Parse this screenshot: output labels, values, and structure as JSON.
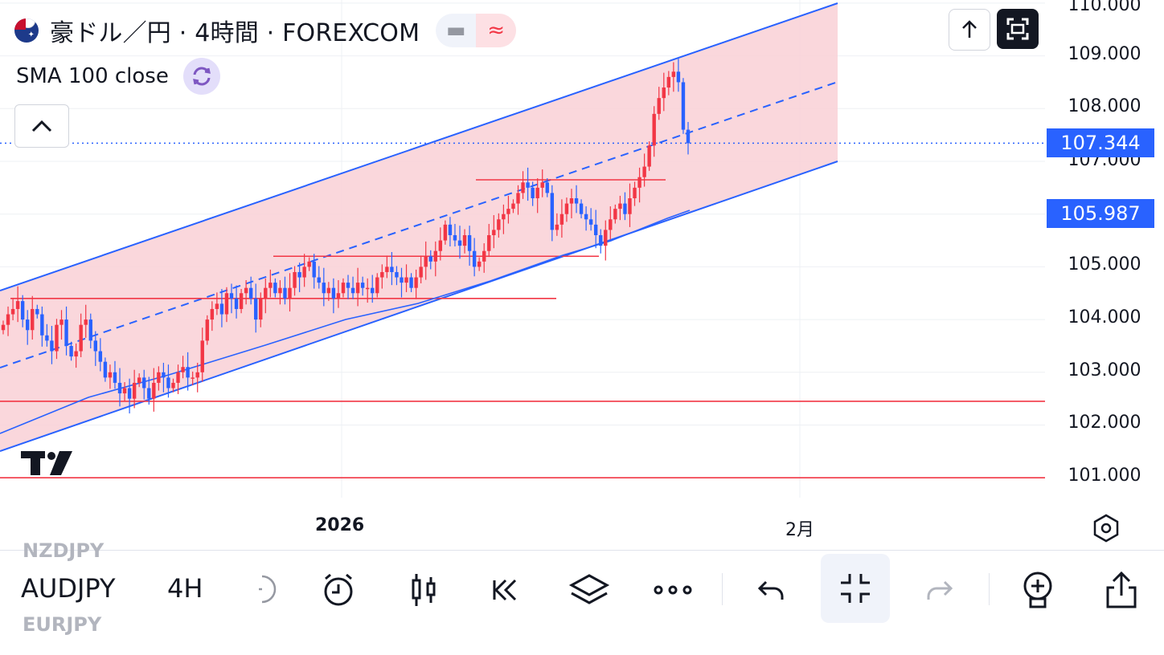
{
  "header": {
    "title": "豪ドル／円 · 4時間 · FOREXCOM",
    "pill_left_icon": "minus-icon",
    "pill_right_icon": "approx-icon",
    "scroll_up_icon": "arrow-up-icon",
    "fullscreen_icon": "fullscreen-icon"
  },
  "indicator": {
    "label": "SMA 100 close",
    "icon": "refresh-icon"
  },
  "price_axis": {
    "ticks": [
      "110.000",
      "109.000",
      "108.000",
      "107.000",
      "105.000",
      "104.000",
      "103.000",
      "102.000",
      "101.000"
    ],
    "current_price": "107.344",
    "second_label": "105.987"
  },
  "time_axis": {
    "labels": [
      "2026",
      "2月"
    ]
  },
  "colors": {
    "up": "#f23645",
    "down": "#2962ff",
    "channel_fill": "#f9d0d6",
    "channel_line": "#2962ff",
    "hline": "#f23645",
    "price_label_bg": "#2962ff"
  },
  "toolbar": {
    "ghost_prev": "NZDJPY",
    "ghost_next": "EURJPY",
    "symbol": "AUDJPY",
    "interval": "4H",
    "icons": [
      "clock-alert-icon",
      "candles-icon",
      "replay-icon",
      "layers-icon",
      "more-icon",
      "undo-icon",
      "collapse-icon",
      "redo-icon",
      "add-indicator-icon",
      "share-icon"
    ]
  },
  "chart_data": {
    "type": "candlestick",
    "symbol": "AUDJPY",
    "title": "豪ドル／円 · 4時間 · FOREXCOM",
    "ylim": [
      100.5,
      110.1
    ],
    "current_price": 107.344,
    "horizontal_levels": [
      104.4,
      105.2,
      106.65,
      102.45,
      101.0
    ],
    "indicator": "SMA 100 close",
    "x_labels": [
      "2026",
      "2月"
    ],
    "closes": [
      103.9,
      104.1,
      104.2,
      104.35,
      104.0,
      103.8,
      104.2,
      104.1,
      103.7,
      103.6,
      103.4,
      103.9,
      104.0,
      103.5,
      103.3,
      103.4,
      103.9,
      104.0,
      103.6,
      103.4,
      103.2,
      102.9,
      103.0,
      102.8,
      102.6,
      102.7,
      102.5,
      102.8,
      102.9,
      102.7,
      102.5,
      102.8,
      103.0,
      102.9,
      102.7,
      102.8,
      103.0,
      103.1,
      102.9,
      102.9,
      103.0,
      103.6,
      104.0,
      104.2,
      104.3,
      104.1,
      104.5,
      104.4,
      104.2,
      104.5,
      104.6,
      104.4,
      104.0,
      104.4,
      104.6,
      104.7,
      104.5,
      104.6,
      104.4,
      104.6,
      104.9,
      104.8,
      105.0,
      105.1,
      104.8,
      104.7,
      104.5,
      104.6,
      104.4,
      104.5,
      104.7,
      104.6,
      104.5,
      104.7,
      104.6,
      104.6,
      104.5,
      104.8,
      104.9,
      105.0,
      104.9,
      104.8,
      104.7,
      104.8,
      104.6,
      104.8,
      105.0,
      105.2,
      105.1,
      105.3,
      105.5,
      105.8,
      105.6,
      105.5,
      105.4,
      105.6,
      105.3,
      105.0,
      105.1,
      105.3,
      105.6,
      105.7,
      105.9,
      106.0,
      106.1,
      106.2,
      106.4,
      106.6,
      106.5,
      106.3,
      106.5,
      106.6,
      106.4,
      105.7,
      105.8,
      106.0,
      106.2,
      106.3,
      106.2,
      106.0,
      105.9,
      105.8,
      105.6,
      105.4,
      105.7,
      105.9,
      106.1,
      106.2,
      106.0,
      106.3,
      106.5,
      106.7,
      106.9,
      107.3,
      107.9,
      108.2,
      108.4,
      108.6,
      108.7,
      108.5,
      107.6,
      107.344
    ]
  }
}
